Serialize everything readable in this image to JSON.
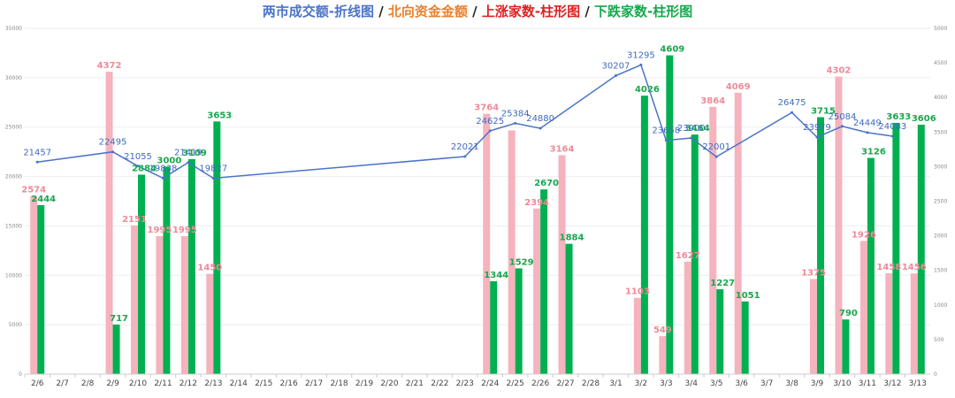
{
  "chart_data": {
    "type": "bar",
    "title_parts": [
      {
        "text": "两市成交额-折线图",
        "color": "#4a74c9"
      },
      {
        "text": " / ",
        "color": "#222222"
      },
      {
        "text": "北向资金金额",
        "color": "#e8812e"
      },
      {
        "text": " / ",
        "color": "#222222"
      },
      {
        "text": "上涨家数-柱形图",
        "color": "#e02020"
      },
      {
        "text": " / ",
        "color": "#222222"
      },
      {
        "text": "下跌家数-柱形图",
        "color": "#16a84d"
      }
    ],
    "categories": [
      "2/6",
      "2/7",
      "2/8",
      "2/9",
      "2/10",
      "2/11",
      "2/12",
      "2/13",
      "2/14",
      "2/15",
      "2/16",
      "2/17",
      "2/18",
      "2/19",
      "2/20",
      "2/21",
      "2/22",
      "2/23",
      "2/24",
      "2/25",
      "2/26",
      "2/27",
      "2/28",
      "3/1",
      "3/2",
      "3/3",
      "3/4",
      "3/5",
      "3/6",
      "3/7",
      "3/8",
      "3/9",
      "3/10",
      "3/11",
      "3/12",
      "3/13"
    ],
    "left_axis": {
      "ylim": [
        0,
        35000
      ],
      "ticks": [
        "0",
        "5000",
        "10000",
        "15000",
        "20000",
        "25000",
        "30000",
        "35000"
      ]
    },
    "right_axis": {
      "ylim": [
        0,
        5000
      ],
      "ticks": [
        "0",
        "500",
        "1000",
        "1500",
        "2000",
        "2500",
        "3000",
        "3500",
        "4000",
        "4500",
        "5000"
      ]
    },
    "series": [
      {
        "kind": "line",
        "axis": "left",
        "color": "#4a74c9",
        "values": [
          21457,
          null,
          null,
          22495,
          21055,
          19838,
          21419,
          19827,
          null,
          null,
          null,
          null,
          null,
          null,
          null,
          null,
          null,
          22021,
          24625,
          25384,
          24880,
          null,
          null,
          30207,
          31295,
          23658,
          23900,
          22001,
          null,
          null,
          26475,
          23979,
          25084,
          24449,
          24083,
          null
        ],
        "labels": [
          "21457",
          null,
          null,
          "22495",
          "21055",
          "19838",
          "21419",
          "19827",
          null,
          null,
          null,
          null,
          null,
          null,
          null,
          null,
          null,
          "22021",
          "24625",
          "25384",
          "24880",
          null,
          null,
          "30207",
          "31295",
          "23658",
          "23900",
          "22001",
          null,
          null,
          "26475",
          "23979",
          "25084",
          "24449",
          "24083",
          null
        ]
      },
      {
        "kind": "bar",
        "axis": "right",
        "color": "#f5b3bd",
        "values": [
          2574,
          null,
          null,
          4372,
          2151,
          1995,
          1995,
          1450,
          null,
          null,
          null,
          null,
          null,
          null,
          null,
          null,
          null,
          null,
          3764,
          3524,
          2394,
          3164,
          null,
          null,
          1103,
          549,
          1627,
          3864,
          4069,
          null,
          null,
          1375,
          4302,
          1926,
          1458,
          1456
        ],
        "labels": [
          "2574",
          null,
          null,
          "4372",
          "2151",
          "1995",
          "1995",
          "1450",
          null,
          null,
          null,
          null,
          null,
          null,
          null,
          null,
          null,
          null,
          "3764",
          null,
          "2394",
          "3164",
          null,
          null,
          "1103",
          "549",
          "1627",
          "3864",
          "4069",
          null,
          null,
          "1375",
          "4302",
          "1926",
          "1458",
          "1456"
        ]
      },
      {
        "kind": "bar",
        "axis": "right",
        "color": "#00b050",
        "values": [
          2444,
          null,
          null,
          717,
          2884,
          3000,
          3109,
          3653,
          null,
          null,
          null,
          null,
          null,
          null,
          null,
          null,
          null,
          null,
          1344,
          1529,
          2670,
          1884,
          null,
          null,
          4026,
          4609,
          3464,
          1227,
          1051,
          null,
          null,
          3715,
          790,
          3126,
          3633,
          3606
        ],
        "labels": [
          "2444",
          null,
          null,
          "717",
          "2884",
          "3000",
          "3109",
          "3653",
          null,
          null,
          null,
          null,
          null,
          null,
          null,
          null,
          null,
          null,
          "1344",
          "1529",
          "2670",
          "1884",
          null,
          null,
          "4026",
          "4609",
          "3464",
          "1227",
          "1051",
          null,
          null,
          "3715",
          "790",
          "3126",
          "3633",
          "3606"
        ]
      }
    ],
    "grid": true,
    "colors": {
      "gridline": "#eeeeee",
      "axis": "#cccccc"
    }
  }
}
